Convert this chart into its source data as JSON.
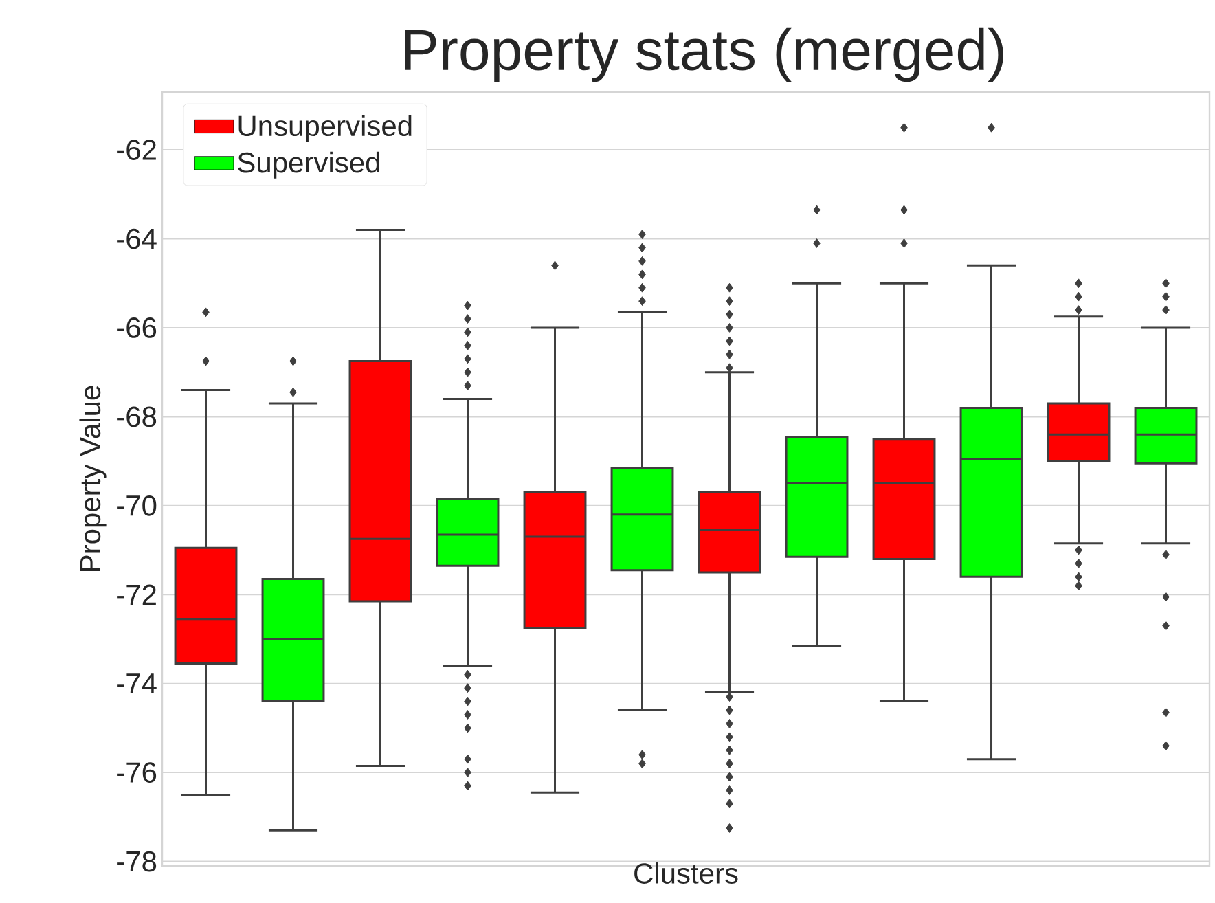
{
  "chart_data": {
    "type": "box",
    "title": "Property stats (merged)",
    "xlabel": "Clusters",
    "ylabel": "Property Value",
    "categories": [
      null,
      null,
      null,
      null,
      null,
      null,
      null,
      null,
      null,
      null,
      null,
      null
    ],
    "ylim": [
      -78.1,
      -60.7
    ],
    "yticks": [
      -78,
      -76,
      -74,
      -72,
      -70,
      -68,
      -66,
      -64,
      -62
    ],
    "grid": "y",
    "legend": "top left",
    "series": [
      {
        "name": "Unsupervised",
        "color": "#ff0000",
        "boxes": [
          {
            "low": -76.5,
            "q1": -73.55,
            "median": -72.55,
            "q3": -70.95,
            "high": -67.4,
            "outliers": [
              -65.65,
              -66.75
            ]
          },
          null,
          {
            "low": -75.85,
            "q1": -72.15,
            "median": -70.75,
            "q3": -66.75,
            "high": -63.8
          },
          null,
          {
            "low": -76.45,
            "q1": -72.75,
            "median": -70.7,
            "q3": -69.7,
            "high": -66.0,
            "outliers": [
              -64.6
            ]
          },
          null,
          {
            "low": -74.2,
            "q1": -71.5,
            "median": -70.55,
            "q3": -69.7,
            "high": -67.0,
            "outliers": [
              -65.1,
              -65.4,
              -65.7,
              -66.0,
              -66.3,
              -66.6,
              -66.9,
              -74.3,
              -74.6,
              -74.9,
              -75.2,
              -75.5,
              -75.8,
              -76.1,
              -76.4,
              -76.7,
              -77.25
            ]
          },
          null,
          {
            "low": -74.4,
            "q1": -71.2,
            "median": -69.5,
            "q3": -68.5,
            "high": -65.0,
            "outliers": [
              -61.5,
              -63.35,
              -64.1
            ]
          },
          null,
          {
            "low": -70.85,
            "q1": -69.0,
            "median": -68.4,
            "q3": -67.7,
            "high": -65.75,
            "outliers": [
              -65.0,
              -65.3,
              -65.6,
              -71.0,
              -71.3,
              -71.6,
              -71.8
            ]
          },
          null
        ]
      },
      {
        "name": "Supervised",
        "color": "#00ff00",
        "boxes": [
          null,
          {
            "low": -77.3,
            "q1": -74.4,
            "median": -73.0,
            "q3": -71.65,
            "high": -67.7,
            "outliers": [
              -66.75,
              -67.45
            ]
          },
          null,
          {
            "low": -73.6,
            "q1": -71.35,
            "median": -70.65,
            "q3": -69.85,
            "high": -67.6,
            "outliers": [
              -65.5,
              -65.8,
              -66.1,
              -66.4,
              -66.7,
              -67.0,
              -67.3,
              -73.8,
              -74.1,
              -74.4,
              -74.7,
              -75.0,
              -75.7,
              -76.0,
              -76.3
            ]
          },
          null,
          {
            "low": -74.6,
            "q1": -71.45,
            "median": -70.2,
            "q3": -69.15,
            "high": -65.65,
            "outliers": [
              -63.9,
              -64.2,
              -64.5,
              -64.8,
              -65.1,
              -65.4,
              -75.6,
              -75.8
            ]
          },
          null,
          {
            "low": -73.15,
            "q1": -71.15,
            "median": -69.5,
            "q3": -68.45,
            "high": -65.0,
            "outliers": [
              -63.35,
              -64.1
            ]
          },
          null,
          {
            "low": -75.7,
            "q1": -71.6,
            "median": -68.95,
            "q3": -67.8,
            "high": -64.6,
            "outliers": [
              -61.5
            ]
          },
          null,
          {
            "low": -70.85,
            "q1": -69.05,
            "median": -68.4,
            "q3": -67.8,
            "high": -66.0,
            "outliers": [
              -65.0,
              -65.3,
              -65.6,
              -71.1,
              -72.05,
              -72.7,
              -74.65,
              -75.4
            ]
          }
        ]
      }
    ]
  }
}
